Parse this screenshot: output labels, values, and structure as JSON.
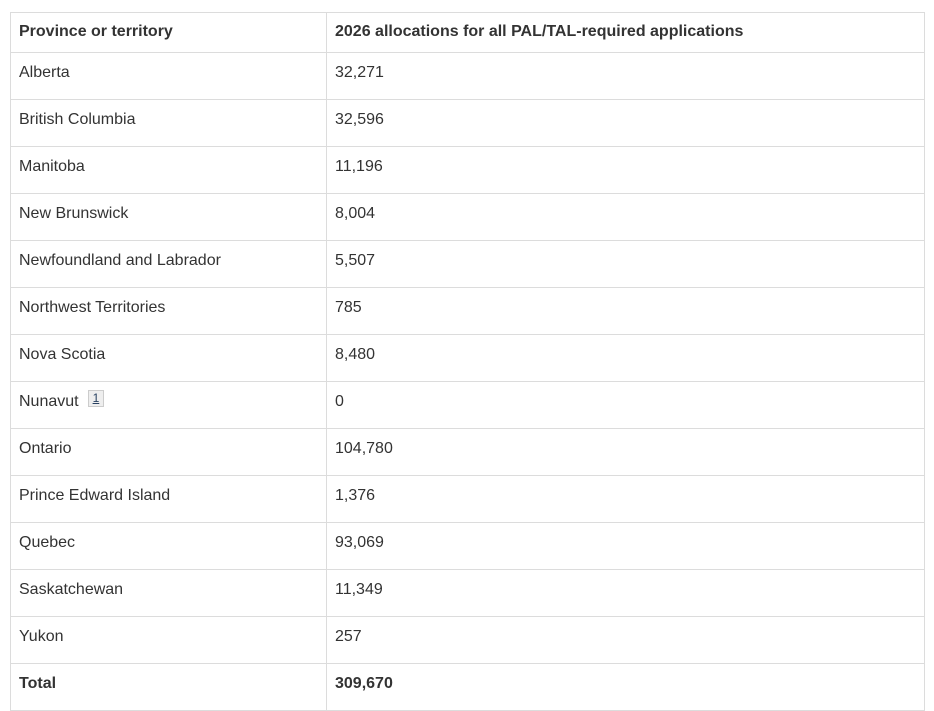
{
  "page": {
    "background_color": "#ffffff",
    "text_color": "#333333",
    "border_color": "#dcdcdc",
    "footnote_link_color": "#284162"
  },
  "table": {
    "header": {
      "province_col": "Province or territory",
      "allocations_col": "2026 allocations for all PAL/TAL-required applications"
    },
    "rows": [
      {
        "province": "Alberta",
        "value": "32,271"
      },
      {
        "province": "British Columbia",
        "value": "32,596"
      },
      {
        "province": "Manitoba",
        "value": "11,196"
      },
      {
        "province": "New Brunswick",
        "value": "8,004"
      },
      {
        "province": "Newfoundland and Labrador",
        "value": "5,507"
      },
      {
        "province": "Northwest Territories",
        "value": "785"
      },
      {
        "province": "Nova Scotia",
        "value": "8,480"
      },
      {
        "province": "Nunavut",
        "value": "0",
        "footnote": "1"
      },
      {
        "province": "Ontario",
        "value": "104,780"
      },
      {
        "province": "Prince Edward Island",
        "value": "1,376"
      },
      {
        "province": "Quebec",
        "value": "93,069"
      },
      {
        "province": "Saskatchewan",
        "value": "11,349"
      },
      {
        "province": "Yukon",
        "value": "257"
      }
    ],
    "total": {
      "label": "Total",
      "value": "309,670"
    }
  }
}
